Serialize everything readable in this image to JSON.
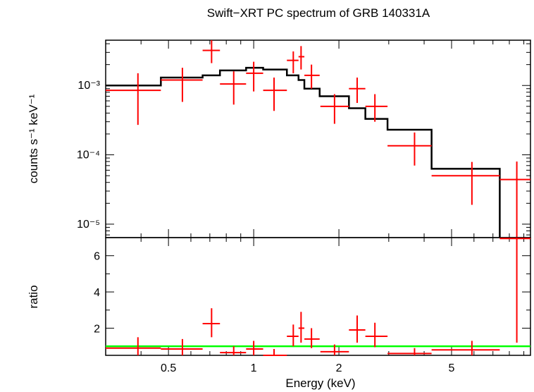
{
  "chart_data": [
    {
      "type": "scatter",
      "title": "Swift−XRT PC spectrum of GRB 140331A",
      "ylabel": "counts s⁻¹ keV⁻¹",
      "xlabel": "Energy (keV)",
      "xscale": "log",
      "yscale": "log",
      "xlim": [
        0.3,
        9.5
      ],
      "ylim": [
        6.4e-06,
        0.0045
      ],
      "x_ticks": [
        {
          "value": 0.5,
          "label": "0.5"
        },
        {
          "value": 1,
          "label": "1"
        },
        {
          "value": 2,
          "label": "2"
        },
        {
          "value": 5,
          "label": "5"
        }
      ],
      "y_ticks": [
        {
          "value": 1e-05,
          "label": "10⁻⁵"
        },
        {
          "value": 0.0001,
          "label": "10⁻⁴"
        },
        {
          "value": 0.001,
          "label": "10⁻³"
        }
      ],
      "data_color": "#ff0000",
      "model_color": "#000000",
      "data_points": [
        {
          "x": 0.39,
          "xlo": 0.3,
          "xhi": 0.47,
          "y": 0.00085,
          "ylo": 0.00027,
          "yhi": 0.0015
        },
        {
          "x": 0.56,
          "xlo": 0.47,
          "xhi": 0.66,
          "y": 0.0012,
          "ylo": 0.00058,
          "yhi": 0.0018
        },
        {
          "x": 0.71,
          "xlo": 0.66,
          "xhi": 0.76,
          "y": 0.0032,
          "ylo": 0.0021,
          "yhi": 0.0045
        },
        {
          "x": 0.85,
          "xlo": 0.76,
          "xhi": 0.94,
          "y": 0.00105,
          "ylo": 0.00053,
          "yhi": 0.0016
        },
        {
          "x": 1.0,
          "xlo": 0.94,
          "xhi": 1.08,
          "y": 0.0015,
          "ylo": 0.00082,
          "yhi": 0.0022
        },
        {
          "x": 1.18,
          "xlo": 1.08,
          "xhi": 1.31,
          "y": 0.00085,
          "ylo": 0.00043,
          "yhi": 0.0013
        },
        {
          "x": 1.38,
          "xlo": 1.31,
          "xhi": 1.44,
          "y": 0.0023,
          "ylo": 0.0015,
          "yhi": 0.0031
        },
        {
          "x": 1.47,
          "xlo": 1.44,
          "xhi": 1.51,
          "y": 0.0026,
          "ylo": 0.0017,
          "yhi": 0.0037
        },
        {
          "x": 1.6,
          "xlo": 1.51,
          "xhi": 1.71,
          "y": 0.0014,
          "ylo": 0.0009,
          "yhi": 0.002
        },
        {
          "x": 1.93,
          "xlo": 1.72,
          "xhi": 2.17,
          "y": 0.0005,
          "ylo": 0.00028,
          "yhi": 0.00075
        },
        {
          "x": 2.32,
          "xlo": 2.17,
          "xhi": 2.48,
          "y": 0.0009,
          "ylo": 0.00056,
          "yhi": 0.0013
        },
        {
          "x": 2.68,
          "xlo": 2.48,
          "xhi": 2.97,
          "y": 0.0005,
          "ylo": 0.0003,
          "yhi": 0.00075
        },
        {
          "x": 3.7,
          "xlo": 2.97,
          "xhi": 4.25,
          "y": 0.000135,
          "ylo": 7e-05,
          "yhi": 0.00021
        },
        {
          "x": 5.9,
          "xlo": 4.25,
          "xhi": 7.4,
          "y": 5e-05,
          "ylo": 1.9e-05,
          "yhi": 7.9e-05
        },
        {
          "x": 8.5,
          "xlo": 7.4,
          "xhi": 9.5,
          "y": 4.4e-05,
          "ylo": 6.4e-06,
          "yhi": 8e-05
        }
      ],
      "model_steps": [
        {
          "xlo": 0.3,
          "xhi": 0.47,
          "y": 0.001
        },
        {
          "xlo": 0.47,
          "xhi": 0.66,
          "y": 0.0013
        },
        {
          "xlo": 0.66,
          "xhi": 0.76,
          "y": 0.0014
        },
        {
          "xlo": 0.76,
          "xhi": 0.94,
          "y": 0.00165
        },
        {
          "xlo": 0.94,
          "xhi": 1.08,
          "y": 0.0018
        },
        {
          "xlo": 1.08,
          "xhi": 1.31,
          "y": 0.0017
        },
        {
          "xlo": 1.31,
          "xhi": 1.44,
          "y": 0.0014
        },
        {
          "xlo": 1.44,
          "xhi": 1.51,
          "y": 0.0012
        },
        {
          "xlo": 1.51,
          "xhi": 1.71,
          "y": 0.0009
        },
        {
          "xlo": 1.71,
          "xhi": 2.17,
          "y": 0.0007
        },
        {
          "xlo": 2.17,
          "xhi": 2.48,
          "y": 0.00047
        },
        {
          "xlo": 2.48,
          "xhi": 2.97,
          "y": 0.00033
        },
        {
          "xlo": 2.97,
          "xhi": 4.25,
          "y": 0.00023
        },
        {
          "xlo": 4.25,
          "xhi": 7.4,
          "y": 6.3e-05
        }
      ]
    },
    {
      "type": "scatter",
      "ylabel": "ratio",
      "xlabel": "Energy (keV)",
      "xscale": "log",
      "xlim": [
        0.3,
        9.5
      ],
      "ylim": [
        0.5,
        7.0
      ],
      "y_ticks": [
        {
          "value": 2,
          "label": "2"
        },
        {
          "value": 4,
          "label": "4"
        },
        {
          "value": 6,
          "label": "6"
        }
      ],
      "data_color": "#ff0000",
      "reference_line": {
        "y": 1.0,
        "color": "#00ff00"
      },
      "data_points": [
        {
          "x": 0.39,
          "xlo": 0.3,
          "xhi": 0.47,
          "y": 0.9,
          "ylo": 0.5,
          "yhi": 1.5
        },
        {
          "x": 0.56,
          "xlo": 0.47,
          "xhi": 0.66,
          "y": 0.85,
          "ylo": 0.5,
          "yhi": 1.4
        },
        {
          "x": 0.71,
          "xlo": 0.66,
          "xhi": 0.76,
          "y": 2.25,
          "ylo": 1.5,
          "yhi": 3.1
        },
        {
          "x": 0.85,
          "xlo": 0.76,
          "xhi": 0.94,
          "y": 0.65,
          "ylo": 0.5,
          "yhi": 1.0
        },
        {
          "x": 1.0,
          "xlo": 0.94,
          "xhi": 1.08,
          "y": 0.85,
          "ylo": 0.5,
          "yhi": 1.3
        },
        {
          "x": 1.18,
          "xlo": 1.08,
          "xhi": 1.31,
          "y": 0.5,
          "ylo": 0.5,
          "yhi": 0.85
        },
        {
          "x": 1.38,
          "xlo": 1.31,
          "xhi": 1.44,
          "y": 1.55,
          "ylo": 1.0,
          "yhi": 2.2
        },
        {
          "x": 1.47,
          "xlo": 1.44,
          "xhi": 1.51,
          "y": 2.0,
          "ylo": 1.2,
          "yhi": 2.9
        },
        {
          "x": 1.6,
          "xlo": 1.51,
          "xhi": 1.71,
          "y": 1.4,
          "ylo": 0.9,
          "yhi": 2.0
        },
        {
          "x": 1.93,
          "xlo": 1.72,
          "xhi": 2.17,
          "y": 0.7,
          "ylo": 0.5,
          "yhi": 1.1
        },
        {
          "x": 2.32,
          "xlo": 2.17,
          "xhi": 2.48,
          "y": 1.9,
          "ylo": 1.2,
          "yhi": 2.7
        },
        {
          "x": 2.68,
          "xlo": 2.48,
          "xhi": 2.97,
          "y": 1.55,
          "ylo": 0.95,
          "yhi": 2.3
        },
        {
          "x": 3.7,
          "xlo": 2.97,
          "xhi": 4.25,
          "y": 0.6,
          "ylo": 0.5,
          "yhi": 0.9
        },
        {
          "x": 5.9,
          "xlo": 4.25,
          "xhi": 7.4,
          "y": 0.8,
          "ylo": 0.5,
          "yhi": 1.3
        },
        {
          "x": 8.5,
          "xlo": 7.4,
          "xhi": 9.5,
          "y": 6.95,
          "ylo": 1.2,
          "yhi": 7.0
        }
      ]
    }
  ]
}
